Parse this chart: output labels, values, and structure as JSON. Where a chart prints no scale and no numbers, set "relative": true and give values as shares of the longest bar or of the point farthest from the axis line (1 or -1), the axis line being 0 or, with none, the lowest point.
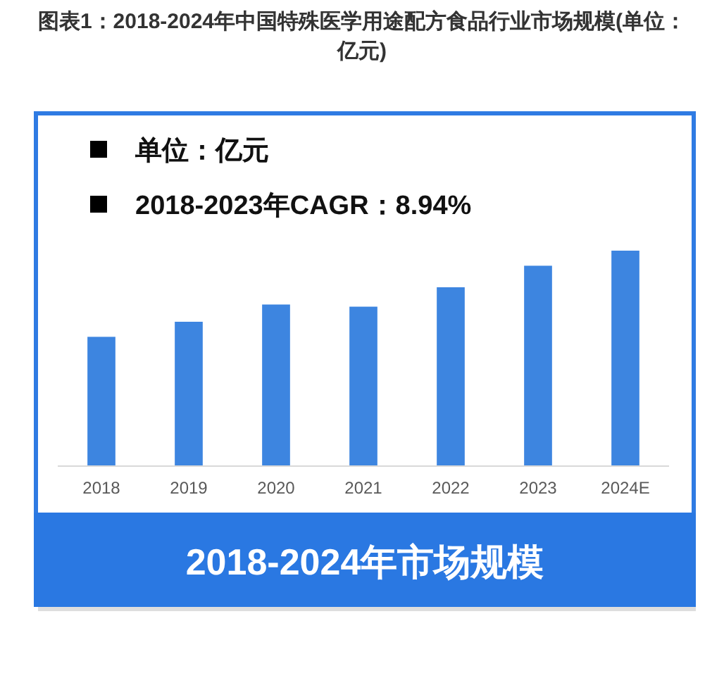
{
  "chart_data": {
    "type": "bar",
    "title": "图表1：2018-2024年中国特殊医学用途配方食品行业市场规模(单位：亿元)",
    "categories": [
      "2018",
      "2019",
      "2020",
      "2021",
      "2022",
      "2023",
      "2024E"
    ],
    "values": [
      0.6,
      0.67,
      0.75,
      0.74,
      0.83,
      0.93,
      1
    ],
    "color": "#3d85e0",
    "relative": true,
    "annotations": [
      "单位：亿元",
      "2018-2023年CAGR：8.94%",
      "2018-2024年市场规模"
    ]
  }
}
